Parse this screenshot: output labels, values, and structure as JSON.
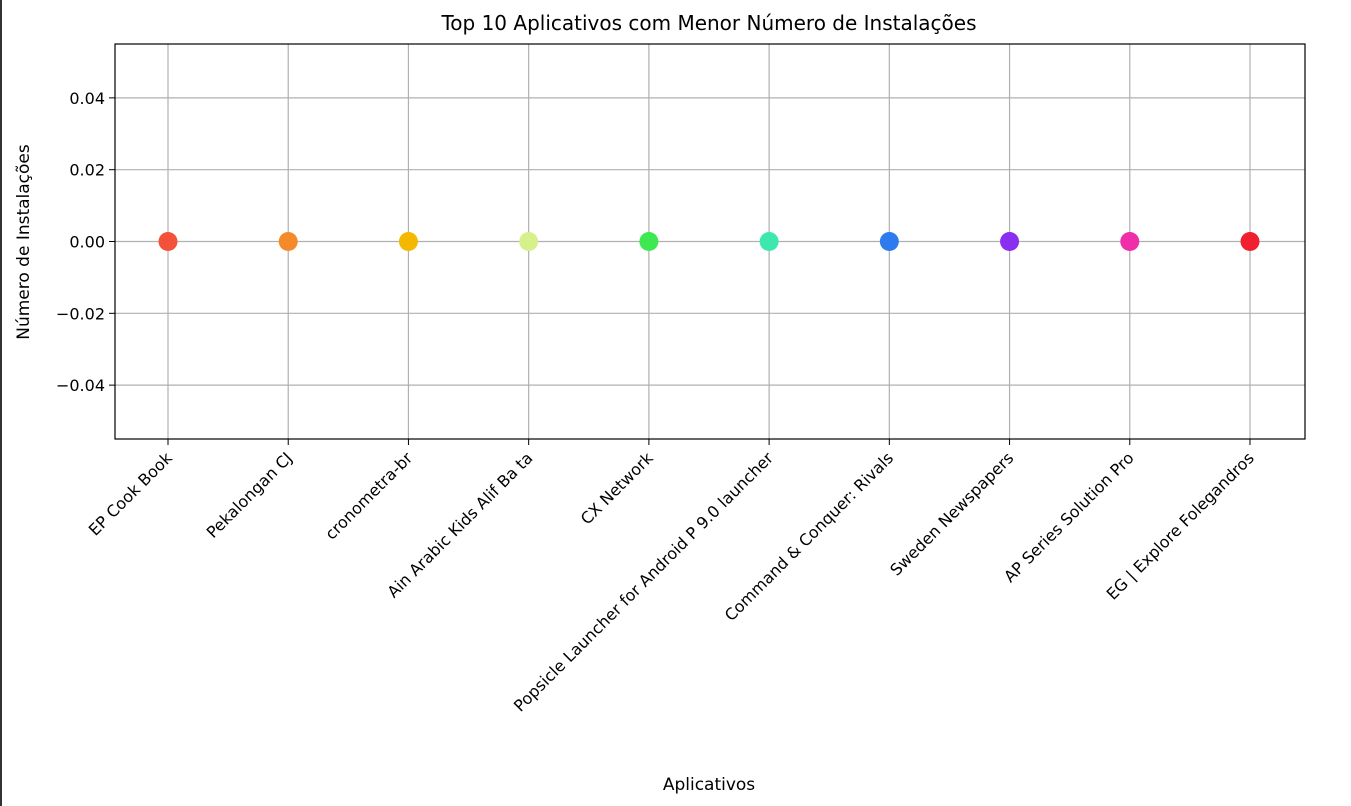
{
  "chart_data": {
    "type": "scatter",
    "title": "Top 10 Aplicativos com Menor Número de Instalações",
    "xlabel": "Aplicativos",
    "ylabel": "Número de Instalações",
    "categories": [
      "EP Cook Book",
      "Pekalongan CJ",
      "cronometra-br",
      "Ain Arabic Kids Alif Ba ta",
      "CX Network",
      "Popsicle Launcher for Android P 9.0 launcher",
      "Command & Conquer: Rivals",
      "Sweden Newspapers",
      "AP Series Solution Pro",
      "EG | Explore Folegandros"
    ],
    "values": [
      0,
      0,
      0,
      0,
      0,
      0,
      0,
      0,
      0,
      0
    ],
    "point_colors": [
      "#f4513a",
      "#f58a2a",
      "#f5b800",
      "#d6f08c",
      "#3de853",
      "#3de8b0",
      "#2e7bf0",
      "#8a2ef0",
      "#f02ea8",
      "#f0202e"
    ],
    "yticks": [
      "0.04",
      "0.02",
      "0.00",
      "−0.02",
      "−0.04"
    ],
    "ytick_values": [
      0.04,
      0.02,
      0.0,
      -0.02,
      -0.04
    ],
    "ylim": [
      -0.055,
      0.055
    ],
    "grid": true,
    "legend": "none"
  }
}
